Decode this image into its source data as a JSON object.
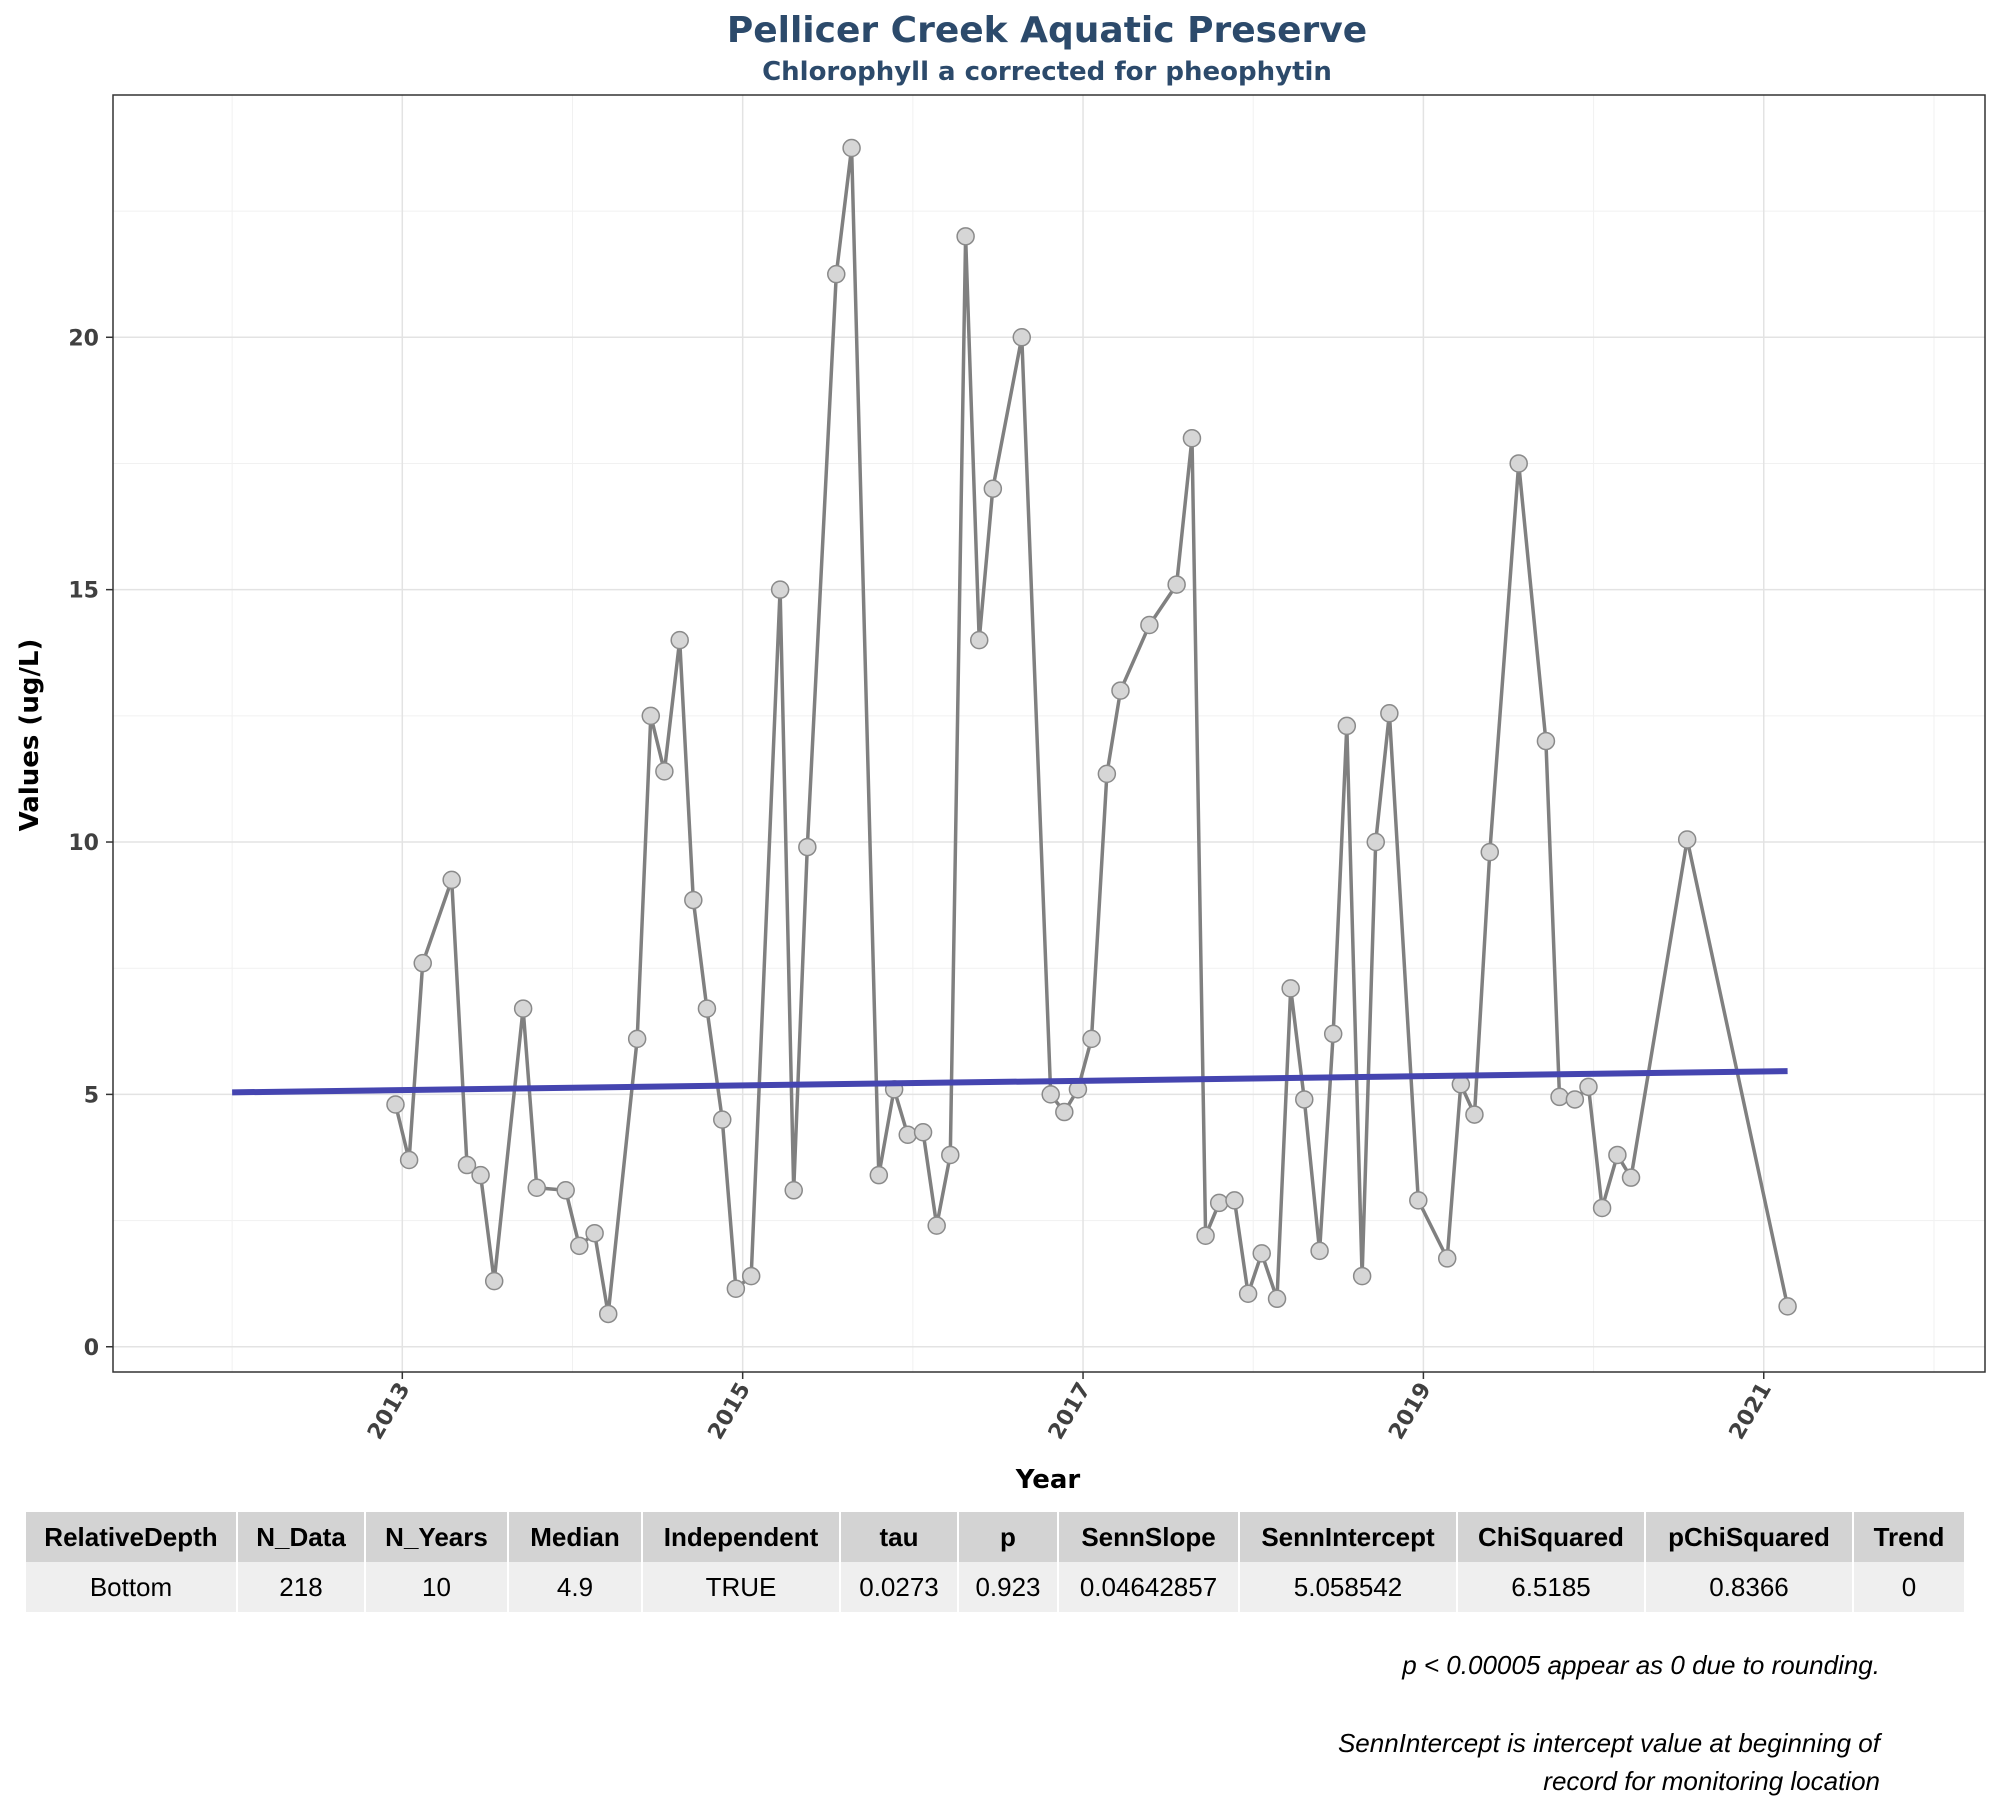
{
  "chart_data": {
    "type": "line",
    "title": "Pellicer Creek Aquatic Preserve",
    "subtitle": "Chlorophyll a corrected for pheophytin",
    "xlabel": "Year",
    "ylabel": "Values (ug/L)",
    "xlim": [
      2011.3,
      2022.3
    ],
    "ylim": [
      -0.5,
      24.8
    ],
    "x_ticks": [
      2013,
      2015,
      2017,
      2019,
      2021
    ],
    "y_ticks": [
      0,
      5,
      10,
      15,
      20
    ],
    "grid": true,
    "series": [
      {
        "color": "#808080",
        "points": [
          [
            2012.96,
            4.8
          ],
          [
            2013.04,
            3.7
          ],
          [
            2013.12,
            7.6
          ],
          [
            2013.29,
            9.25
          ],
          [
            2013.38,
            3.6
          ],
          [
            2013.46,
            3.4
          ],
          [
            2013.54,
            1.3
          ],
          [
            2013.71,
            6.7
          ],
          [
            2013.79,
            3.15
          ],
          [
            2013.96,
            3.1
          ],
          [
            2014.04,
            2.0
          ],
          [
            2014.13,
            2.25
          ],
          [
            2014.21,
            0.65
          ],
          [
            2014.38,
            6.1
          ],
          [
            2014.46,
            12.5
          ],
          [
            2014.54,
            11.4
          ],
          [
            2014.63,
            14.0
          ],
          [
            2014.71,
            8.85
          ],
          [
            2014.79,
            6.7
          ],
          [
            2014.88,
            4.5
          ],
          [
            2014.96,
            1.15
          ],
          [
            2015.05,
            1.4
          ],
          [
            2015.22,
            15.0
          ],
          [
            2015.3,
            3.1
          ],
          [
            2015.38,
            9.9
          ],
          [
            2015.55,
            21.25
          ],
          [
            2015.64,
            23.75
          ],
          [
            2015.8,
            3.4
          ],
          [
            2015.89,
            5.1
          ],
          [
            2015.97,
            4.2
          ],
          [
            2016.06,
            4.25
          ],
          [
            2016.14,
            2.4
          ],
          [
            2016.22,
            3.8
          ],
          [
            2016.31,
            22.0
          ],
          [
            2016.39,
            14.0
          ],
          [
            2016.47,
            17.0
          ],
          [
            2016.64,
            20.0
          ],
          [
            2016.81,
            5.0
          ],
          [
            2016.89,
            4.65
          ],
          [
            2016.97,
            5.1
          ],
          [
            2017.05,
            6.1
          ],
          [
            2017.14,
            11.35
          ],
          [
            2017.22,
            13.0
          ],
          [
            2017.39,
            14.3
          ],
          [
            2017.55,
            15.1
          ],
          [
            2017.64,
            18.0
          ],
          [
            2017.72,
            2.2
          ],
          [
            2017.8,
            2.85
          ],
          [
            2017.89,
            2.9
          ],
          [
            2017.97,
            1.05
          ],
          [
            2018.05,
            1.85
          ],
          [
            2018.14,
            0.95
          ],
          [
            2018.22,
            7.1
          ],
          [
            2018.3,
            4.9
          ],
          [
            2018.39,
            1.9
          ],
          [
            2018.47,
            6.2
          ],
          [
            2018.55,
            12.3
          ],
          [
            2018.64,
            1.4
          ],
          [
            2018.72,
            10.0
          ],
          [
            2018.8,
            12.55
          ],
          [
            2018.97,
            2.9
          ],
          [
            2019.14,
            1.75
          ],
          [
            2019.22,
            5.2
          ],
          [
            2019.3,
            4.6
          ],
          [
            2019.39,
            9.8
          ],
          [
            2019.56,
            17.5
          ],
          [
            2019.72,
            12.0
          ],
          [
            2019.8,
            4.95
          ],
          [
            2019.89,
            4.9
          ],
          [
            2019.97,
            5.15
          ],
          [
            2020.05,
            2.75
          ],
          [
            2020.14,
            3.8
          ],
          [
            2020.22,
            3.35
          ],
          [
            2020.55,
            10.05
          ],
          [
            2021.14,
            0.8
          ]
        ]
      },
      {
        "color": "#4545b0",
        "points": [
          [
            2012.0,
            5.04
          ],
          [
            2021.14,
            5.46
          ]
        ]
      }
    ]
  },
  "stats_table": {
    "headers": [
      "RelativeDepth",
      "N_Data",
      "N_Years",
      "Median",
      "Independent",
      "tau",
      "p",
      "SennSlope",
      "SennIntercept",
      "ChiSquared",
      "pChiSquared",
      "Trend"
    ],
    "row": [
      "Bottom",
      "218",
      "10",
      "4.9",
      "TRUE",
      "0.0273",
      "0.923",
      "0.04642857",
      "5.058542",
      "6.5185",
      "0.8366",
      "0"
    ]
  },
  "footnotes": {
    "rounding_note": "p < 0.00005 appear as 0 due to rounding.",
    "intercept_note_line1": "SennIntercept is intercept value at beginning of",
    "intercept_note_line2": "record for monitoring location"
  }
}
